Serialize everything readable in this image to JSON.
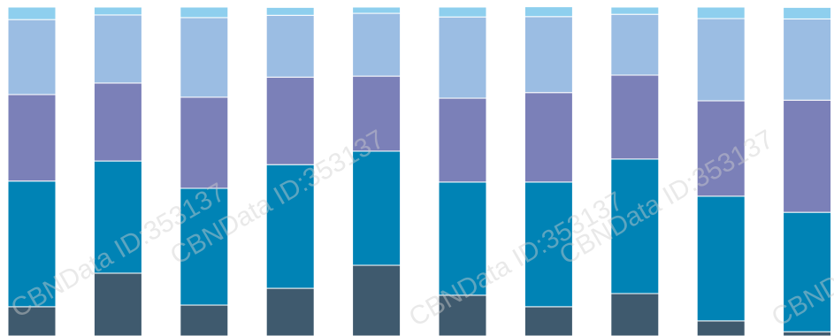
{
  "chart_data": {
    "type": "stacked_bar",
    "categories": [
      null,
      null,
      null,
      null,
      null,
      null,
      null,
      null,
      null,
      null
    ],
    "ylim": [
      0,
      100
    ],
    "series": [
      {
        "color": "#3f5a6e",
        "values": [
          8.9,
          19.1,
          9.4,
          14.5,
          21.5,
          12.4,
          8.9,
          12.9,
          4.6,
          1.3
        ]
      },
      {
        "color": "#0083b5",
        "values": [
          38.2,
          34.1,
          35.5,
          37.6,
          34.7,
          34.4,
          37.9,
          40.9,
          37.9,
          36.3
        ]
      },
      {
        "color": "#7b80b8",
        "values": [
          26.3,
          23.7,
          27.7,
          26.6,
          22.8,
          25.5,
          27.2,
          25.5,
          29.0,
          34.1
        ]
      },
      {
        "color": "#9bbde3",
        "values": [
          22.8,
          20.7,
          24.2,
          18.8,
          19.1,
          24.7,
          23.1,
          18.5,
          25.0,
          24.7
        ]
      },
      {
        "color": "#8ecfee",
        "values": [
          3.8,
          2.4,
          3.2,
          2.4,
          1.9,
          3.0,
          3.0,
          2.2,
          3.5,
          3.5
        ]
      }
    ]
  },
  "watermark": "CBNData ID:353137"
}
